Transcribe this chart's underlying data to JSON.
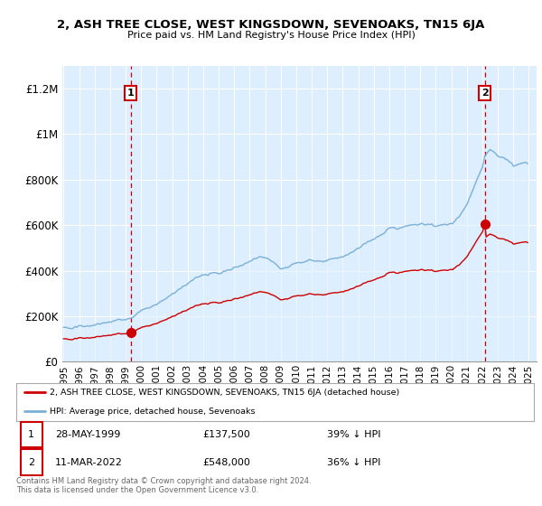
{
  "title": "2, ASH TREE CLOSE, WEST KINGSDOWN, SEVENOAKS, TN15 6JA",
  "subtitle": "Price paid vs. HM Land Registry's House Price Index (HPI)",
  "ylabel_ticks": [
    "£0",
    "£200K",
    "£400K",
    "£600K",
    "£800K",
    "£1M",
    "£1.2M"
  ],
  "ytick_values": [
    0,
    200000,
    400000,
    600000,
    800000,
    1000000,
    1200000
  ],
  "ylim": [
    0,
    1300000
  ],
  "sale1_year": 1999.37,
  "sale1_price": 137500,
  "sale2_year": 2022.17,
  "sale2_price": 548000,
  "legend_line1": "2, ASH TREE CLOSE, WEST KINGSDOWN, SEVENOAKS, TN15 6JA (detached house)",
  "legend_line2": "HPI: Average price, detached house, Sevenoaks",
  "table_row1": [
    "1",
    "28-MAY-1999",
    "£137,500",
    "39% ↓ HPI"
  ],
  "table_row2": [
    "2",
    "11-MAR-2022",
    "£548,000",
    "36% ↓ HPI"
  ],
  "footer": "Contains HM Land Registry data © Crown copyright and database right 2024.\nThis data is licensed under the Open Government Licence v3.0.",
  "hpi_color": "#7ab0d8",
  "hpi_fill_color": "#ddeeff",
  "price_color": "#cc0000",
  "vline_color": "#cc0000",
  "background_color": "#ffffff",
  "chart_bg_color": "#ddeeff",
  "grid_color": "#cccccc"
}
